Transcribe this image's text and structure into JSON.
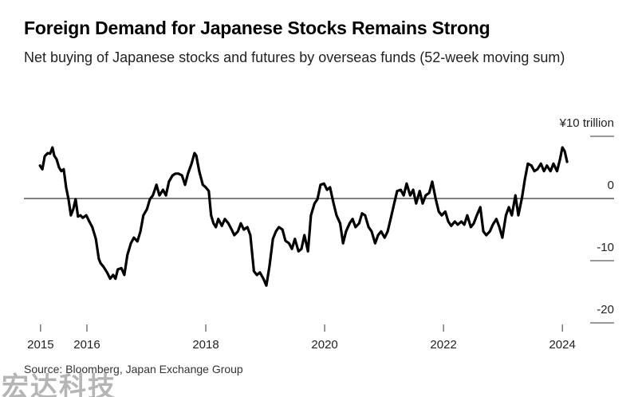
{
  "chart_data": {
    "type": "line",
    "title": "Foreign Demand for Japanese Stocks Remains Strong",
    "subtitle": "Net buying of Japanese stocks and futures by overseas funds (52-week moving sum)",
    "source": "Source: Bloomberg, Japan Exchange Group",
    "watermark": "宏达科技",
    "x": [
      2015.21,
      2015.25,
      2015.29,
      2015.34,
      2015.38,
      2015.42,
      2015.45,
      2015.49,
      2015.53,
      2015.57,
      2015.61,
      2015.65,
      2015.69,
      2015.73,
      2015.77,
      2015.81,
      2015.85,
      2015.89,
      2015.93,
      2015.99,
      2016.04,
      2016.09,
      2016.15,
      2016.2,
      2016.23,
      2016.28,
      2016.34,
      2016.39,
      2016.44,
      2016.48,
      2016.52,
      2016.58,
      2016.63,
      2016.68,
      2016.74,
      2016.79,
      2016.85,
      2016.9,
      2016.95,
      2017.01,
      2017.06,
      2017.11,
      2017.17,
      2017.22,
      2017.28,
      2017.33,
      2017.38,
      2017.44,
      2017.49,
      2017.54,
      2017.6,
      2017.65,
      2017.7,
      2017.76,
      2017.81,
      2017.84,
      2017.89,
      2017.95,
      2018.0,
      2018.05,
      2018.09,
      2018.13,
      2018.17,
      2018.21,
      2018.27,
      2018.32,
      2018.38,
      2018.43,
      2018.48,
      2018.54,
      2018.59,
      2018.64,
      2018.7,
      2018.75,
      2018.81,
      2018.86,
      2018.91,
      2018.97,
      2019.02,
      2019.07,
      2019.13,
      2019.18,
      2019.23,
      2019.29,
      2019.34,
      2019.4,
      2019.45,
      2019.5,
      2019.56,
      2019.61,
      2019.66,
      2019.72,
      2019.77,
      2019.83,
      2019.88,
      2019.93,
      2019.99,
      2020.04,
      2020.09,
      2020.15,
      2020.2,
      2020.26,
      2020.31,
      2020.36,
      2020.42,
      2020.47,
      2020.52,
      2020.58,
      2020.63,
      2020.68,
      2020.74,
      2020.79,
      2020.85,
      2020.9,
      2020.95,
      2021.01,
      2021.06,
      2021.11,
      2021.17,
      2021.22,
      2021.28,
      2021.33,
      2021.38,
      2021.44,
      2021.49,
      2021.54,
      2021.6,
      2021.65,
      2021.7,
      2021.76,
      2021.81,
      2021.87,
      2021.92,
      2021.97,
      2022.03,
      2022.08,
      2022.13,
      2022.19,
      2022.24,
      2022.3,
      2022.35,
      2022.4,
      2022.46,
      2022.51,
      2022.56,
      2022.62,
      2022.67,
      2022.72,
      2022.78,
      2022.83,
      2022.89,
      2022.94,
      2022.99,
      2023.05,
      2023.1,
      2023.15,
      2023.21,
      2023.26,
      2023.32,
      2023.37,
      2023.42,
      2023.48,
      2023.53,
      2023.58,
      2023.64,
      2023.69,
      2023.74,
      2023.8,
      2023.85,
      2023.91,
      2023.96,
      2024.0,
      2024.04,
      2024.08
    ],
    "series": [
      {
        "name": "Net buying",
        "color": "#000000",
        "values": [
          5.3,
          4.7,
          6.8,
          7.3,
          7.2,
          8.2,
          6.9,
          6.3,
          5,
          4.4,
          4.7,
          1.8,
          -0.1,
          -2.7,
          -1.7,
          -0.1,
          -2.9,
          -2.7,
          -3.1,
          -2.7,
          -3.7,
          -4.6,
          -6.5,
          -9.7,
          -10.4,
          -11,
          -11.9,
          -12.9,
          -12.3,
          -12.9,
          -11.4,
          -11.2,
          -12.3,
          -9.1,
          -7.2,
          -6.3,
          -6.9,
          -5.3,
          -2.7,
          -1.7,
          -0.1,
          0.5,
          2.2,
          0.5,
          1.4,
          0.5,
          2.7,
          3.7,
          4,
          4,
          3.7,
          2.2,
          4,
          5.6,
          7.3,
          6.9,
          4.4,
          2.2,
          1.8,
          1.2,
          -2.7,
          -4,
          -4.6,
          -3.3,
          -4.4,
          -3.3,
          -4,
          -4.9,
          -5.9,
          -5.3,
          -4,
          -5,
          -4.6,
          -5.9,
          -11.7,
          -12.3,
          -11.9,
          -12.9,
          -14,
          -11,
          -6.5,
          -5.3,
          -4.6,
          -5,
          -6.8,
          -7.2,
          -8.1,
          -6.5,
          -8.5,
          -8.1,
          -5.9,
          -8.5,
          -2.7,
          -0.8,
          -0.1,
          2.2,
          2.4,
          1.4,
          1.8,
          -0.8,
          -2.7,
          -4,
          -7.2,
          -5.3,
          -4,
          -3.3,
          -4.6,
          -4,
          -2.4,
          -2.7,
          -4.6,
          -5.3,
          -7.2,
          -5.9,
          -5.3,
          -6.3,
          -5.3,
          -3.3,
          -0.8,
          1.2,
          1.4,
          0.5,
          2.4,
          0.5,
          1.4,
          -0.8,
          1.2,
          -0.8,
          0.5,
          0.9,
          2.7,
          -0.1,
          -2.1,
          -2.7,
          -2.1,
          -3.7,
          -4.4,
          -3.7,
          -4.2,
          -3.7,
          -4.2,
          -2.7,
          -4.6,
          -4,
          -2.7,
          -1.4,
          -5.3,
          -5.9,
          -5.3,
          -4.2,
          -3.3,
          -4.6,
          -6.3,
          -2.7,
          -1.4,
          -2.7,
          0.5,
          -2.7,
          0.1,
          3.1,
          5.6,
          5.3,
          4.4,
          4.7,
          5.6,
          4.4,
          5.3,
          4.4,
          5.6,
          4.4,
          6.3,
          8.2,
          7.6,
          5.9
        ]
      }
    ],
    "xlim": [
      2014.94,
      2024.87
    ],
    "xticks": [
      {
        "value": 2015.22,
        "label": "2015"
      },
      2016,
      2018,
      2020,
      2022,
      2024
    ],
    "ylim": [
      -20,
      10
    ],
    "yticks": [
      {
        "value": 10,
        "label": "¥10 trillion"
      },
      0,
      -10,
      -20
    ]
  }
}
